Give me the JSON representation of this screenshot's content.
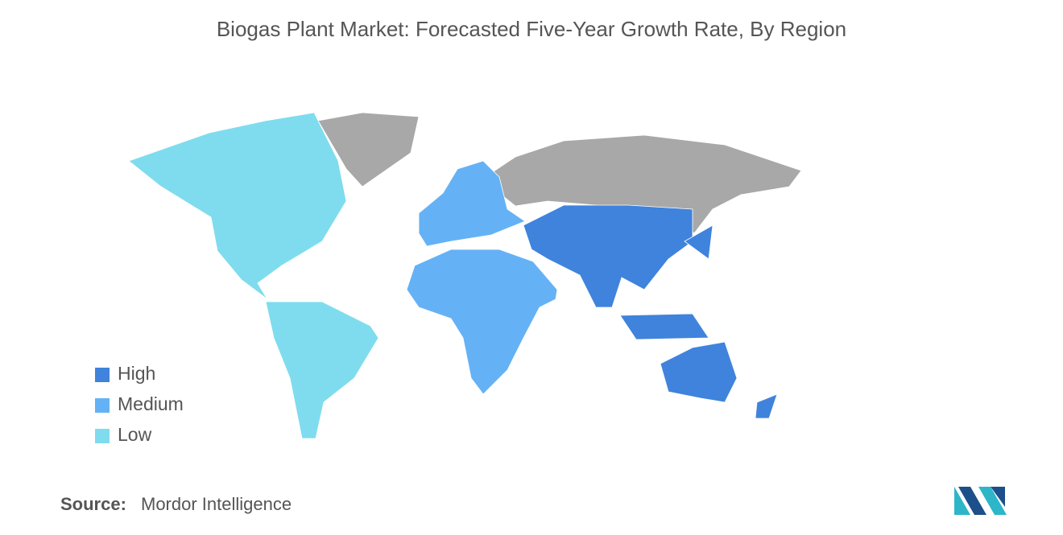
{
  "title": "Biogas Plant Market: Forecasted Five-Year Growth Rate, By Region",
  "legend": [
    {
      "label": "High",
      "color": "#3f83dc"
    },
    {
      "label": "Medium",
      "color": "#64b2f5"
    },
    {
      "label": "Low",
      "color": "#7fdcee"
    }
  ],
  "source": {
    "label": "Source:",
    "text": "Mordor Intelligence"
  }
}
